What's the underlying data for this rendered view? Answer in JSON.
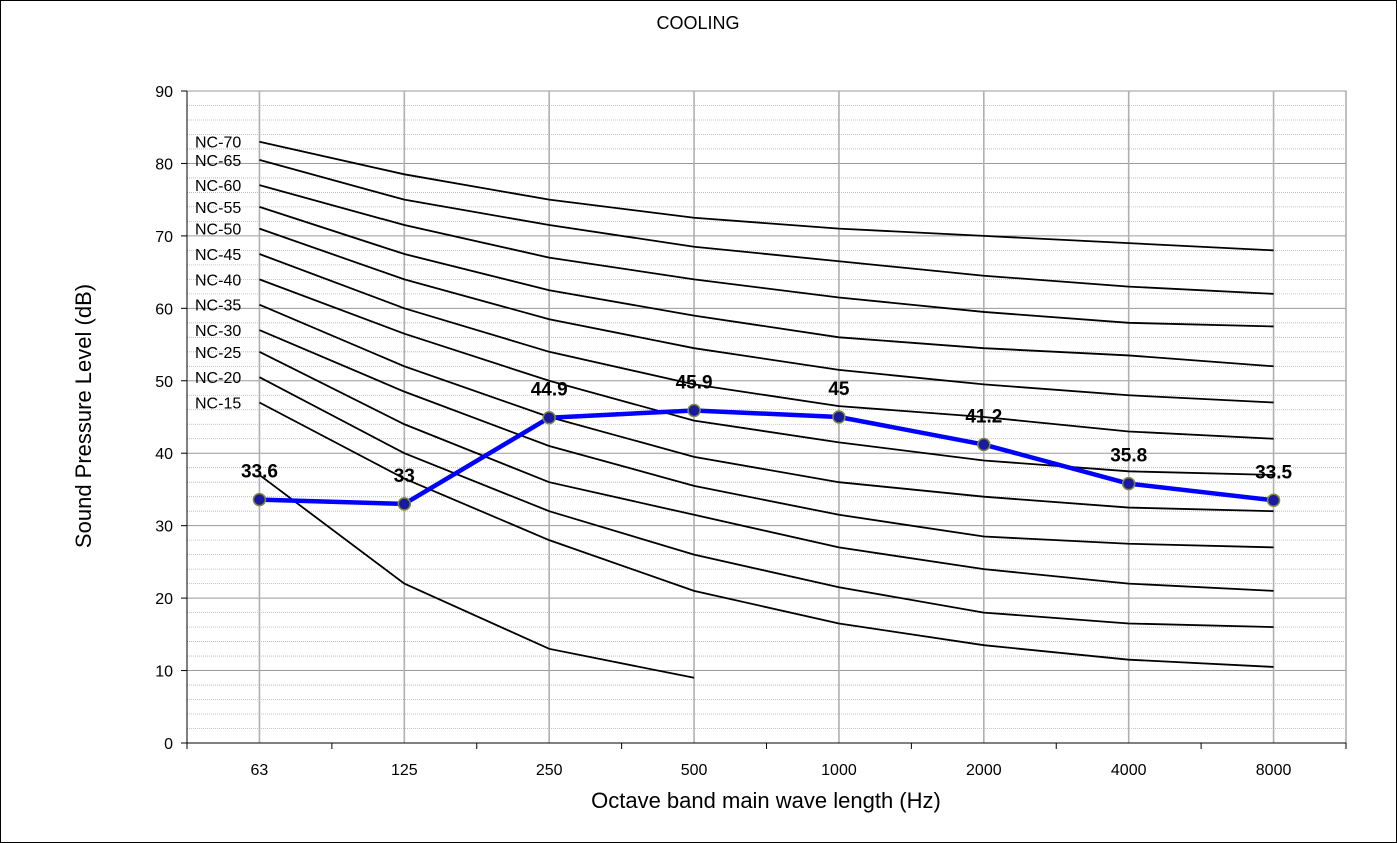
{
  "chart_data": {
    "type": "line",
    "title": "COOLING",
    "xlabel": "Octave band main wave length (Hz)",
    "ylabel": "Sound Pressure  Level (dB)",
    "categories": [
      "63",
      "125",
      "250",
      "500",
      "1000",
      "2000",
      "4000",
      "8000"
    ],
    "ylim": [
      0,
      90
    ],
    "yticks": [
      0,
      10,
      20,
      30,
      40,
      50,
      60,
      70,
      80,
      90
    ],
    "grid": true,
    "measured": {
      "values": [
        33.6,
        33,
        44.9,
        45.9,
        45,
        41.2,
        35.8,
        33.5
      ],
      "labels": [
        "33.6",
        "33",
        "44.9",
        "45.9",
        "45",
        "41.2",
        "35.8",
        "33.5"
      ],
      "color": "#0000ff",
      "marker_color": "#1a1aa0"
    },
    "nc_curves": [
      {
        "name": "NC-70",
        "values": [
          83,
          78.5,
          75,
          72.5,
          71,
          70,
          69,
          68
        ]
      },
      {
        "name": "NC-65",
        "values": [
          80.5,
          75,
          71.5,
          68.5,
          66.5,
          64.5,
          63,
          62
        ]
      },
      {
        "name": "NC-60",
        "values": [
          77,
          71.5,
          67,
          64,
          61.5,
          59.5,
          58,
          57.5
        ]
      },
      {
        "name": "NC-55",
        "values": [
          74,
          67.5,
          62.5,
          59,
          56,
          54.5,
          53.5,
          52
        ]
      },
      {
        "name": "NC-50",
        "values": [
          71,
          64,
          58.5,
          54.5,
          51.5,
          49.5,
          48,
          47
        ]
      },
      {
        "name": "NC-45",
        "values": [
          67.5,
          60,
          54,
          49.5,
          46.5,
          45,
          43,
          42
        ]
      },
      {
        "name": "NC-40",
        "values": [
          64,
          56.5,
          50,
          44.5,
          41.5,
          39,
          37.5,
          37
        ]
      },
      {
        "name": "NC-35",
        "values": [
          60.5,
          52,
          45,
          39.5,
          36,
          34,
          32.5,
          32
        ]
      },
      {
        "name": "NC-30",
        "values": [
          57,
          48.5,
          41,
          35.5,
          31.5,
          28.5,
          27.5,
          27
        ]
      },
      {
        "name": "NC-25",
        "values": [
          54,
          44,
          36,
          31.5,
          27,
          24,
          22,
          21
        ]
      },
      {
        "name": "NC-20",
        "values": [
          50.5,
          40,
          32,
          26,
          21.5,
          18,
          16.5,
          16
        ]
      },
      {
        "name": "NC-15",
        "values": [
          47,
          36.5,
          28,
          21,
          16.5,
          13.5,
          11.5,
          10.5
        ]
      },
      {
        "name": "",
        "values": [
          37,
          22,
          13,
          9,
          null,
          null,
          null,
          null
        ]
      }
    ]
  }
}
